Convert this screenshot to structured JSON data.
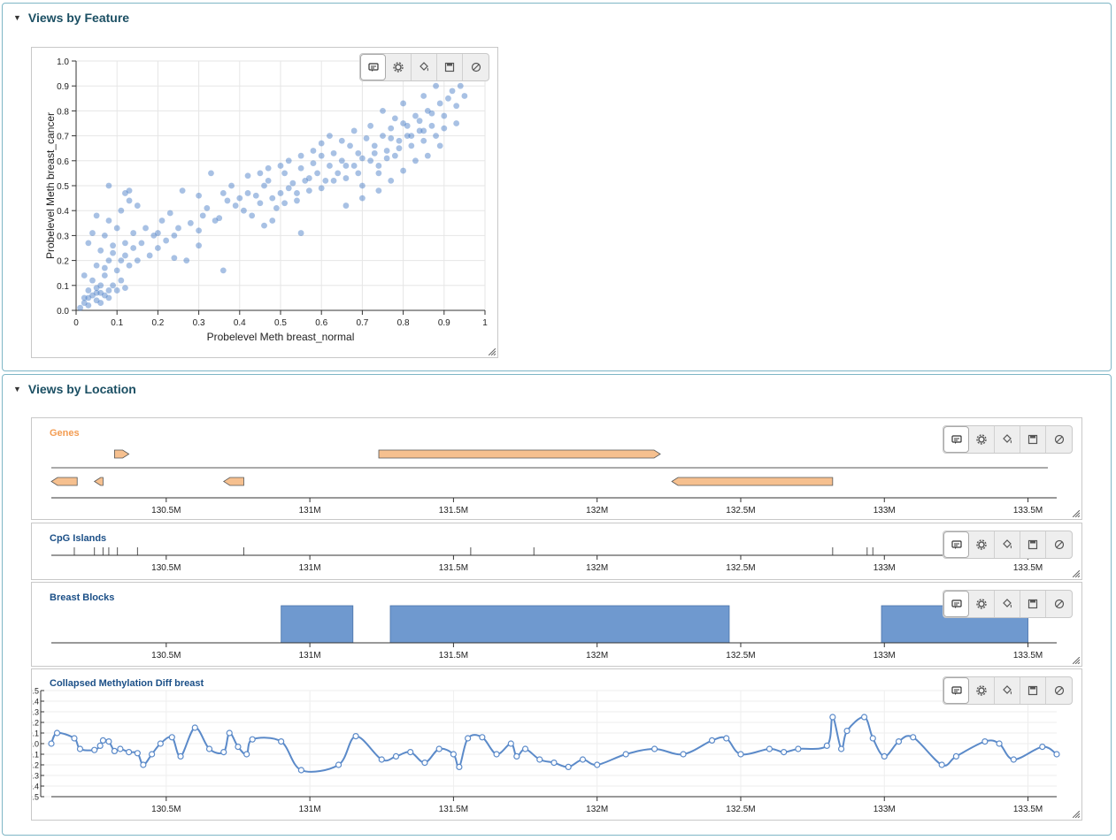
{
  "panels": {
    "feature": {
      "title": "Views by Feature"
    },
    "location": {
      "title": "Views by Location"
    }
  },
  "toolbar": {
    "icons": [
      "comment-icon",
      "gear-icon",
      "paint-bucket-icon",
      "save-icon",
      "disable-icon"
    ]
  },
  "colors": {
    "accent": "#1b4f63",
    "points": "#3d76c4",
    "genes": "#f6c08f",
    "genes_label": "#f39c52",
    "blocks": "#6f99cf",
    "line": "#5b8ac9"
  },
  "scatter": {
    "chart_data": {
      "type": "scatter",
      "xlabel": "Probelevel Meth breast_normal",
      "ylabel": "Probelevel Meth breast_cancer",
      "xlim": [
        0,
        1
      ],
      "ylim": [
        0,
        1
      ],
      "x_ticks": [
        "0",
        "0.1",
        "0.2",
        "0.3",
        "0.4",
        "0.5",
        "0.6",
        "0.7",
        "0.8",
        "0.9",
        "1"
      ],
      "y_ticks": [
        "0.0",
        "0.1",
        "0.2",
        "0.3",
        "0.4",
        "0.5",
        "0.6",
        "0.7",
        "0.8",
        "0.9",
        "1.0"
      ],
      "grid": true,
      "points": [
        [
          0.01,
          0.01
        ],
        [
          0.02,
          0.03
        ],
        [
          0.03,
          0.02
        ],
        [
          0.02,
          0.05
        ],
        [
          0.04,
          0.06
        ],
        [
          0.05,
          0.04
        ],
        [
          0.06,
          0.07
        ],
        [
          0.07,
          0.06
        ],
        [
          0.05,
          0.09
        ],
        [
          0.03,
          0.08
        ],
        [
          0.08,
          0.05
        ],
        [
          0.06,
          0.03
        ],
        [
          0.09,
          0.1
        ],
        [
          0.1,
          0.08
        ],
        [
          0.04,
          0.12
        ],
        [
          0.07,
          0.14
        ],
        [
          0.11,
          0.12
        ],
        [
          0.12,
          0.09
        ],
        [
          0.02,
          0.14
        ],
        [
          0.05,
          0.18
        ],
        [
          0.08,
          0.2
        ],
        [
          0.1,
          0.16
        ],
        [
          0.13,
          0.18
        ],
        [
          0.15,
          0.2
        ],
        [
          0.06,
          0.24
        ],
        [
          0.09,
          0.26
        ],
        [
          0.12,
          0.22
        ],
        [
          0.14,
          0.25
        ],
        [
          0.03,
          0.27
        ],
        [
          0.07,
          0.3
        ],
        [
          0.1,
          0.33
        ],
        [
          0.08,
          0.36
        ],
        [
          0.05,
          0.38
        ],
        [
          0.11,
          0.4
        ],
        [
          0.13,
          0.44
        ],
        [
          0.15,
          0.42
        ],
        [
          0.08,
          0.5
        ],
        [
          0.12,
          0.47
        ],
        [
          0.13,
          0.48
        ],
        [
          0.04,
          0.31
        ],
        [
          0.18,
          0.22
        ],
        [
          0.2,
          0.25
        ],
        [
          0.22,
          0.28
        ],
        [
          0.17,
          0.33
        ],
        [
          0.19,
          0.3
        ],
        [
          0.24,
          0.21
        ],
        [
          0.21,
          0.36
        ],
        [
          0.25,
          0.33
        ],
        [
          0.26,
          0.48
        ],
        [
          0.23,
          0.39
        ],
        [
          0.3,
          0.32
        ],
        [
          0.28,
          0.35
        ],
        [
          0.31,
          0.38
        ],
        [
          0.32,
          0.41
        ],
        [
          0.34,
          0.36
        ],
        [
          0.3,
          0.46
        ],
        [
          0.33,
          0.55
        ],
        [
          0.35,
          0.37
        ],
        [
          0.37,
          0.44
        ],
        [
          0.36,
          0.16
        ],
        [
          0.39,
          0.42
        ],
        [
          0.41,
          0.4
        ],
        [
          0.43,
          0.38
        ],
        [
          0.44,
          0.46
        ],
        [
          0.45,
          0.43
        ],
        [
          0.46,
          0.5
        ],
        [
          0.47,
          0.52
        ],
        [
          0.42,
          0.54
        ],
        [
          0.48,
          0.36
        ],
        [
          0.49,
          0.41
        ],
        [
          0.5,
          0.47
        ],
        [
          0.52,
          0.49
        ],
        [
          0.51,
          0.55
        ],
        [
          0.53,
          0.51
        ],
        [
          0.54,
          0.44
        ],
        [
          0.55,
          0.57
        ],
        [
          0.56,
          0.52
        ],
        [
          0.57,
          0.48
        ],
        [
          0.58,
          0.59
        ],
        [
          0.59,
          0.55
        ],
        [
          0.6,
          0.62
        ],
        [
          0.61,
          0.52
        ],
        [
          0.62,
          0.58
        ],
        [
          0.63,
          0.63
        ],
        [
          0.64,
          0.55
        ],
        [
          0.65,
          0.6
        ],
        [
          0.66,
          0.53
        ],
        [
          0.67,
          0.66
        ],
        [
          0.68,
          0.58
        ],
        [
          0.69,
          0.63
        ],
        [
          0.7,
          0.61
        ],
        [
          0.7,
          0.5
        ],
        [
          0.71,
          0.69
        ],
        [
          0.72,
          0.6
        ],
        [
          0.73,
          0.66
        ],
        [
          0.74,
          0.55
        ],
        [
          0.75,
          0.7
        ],
        [
          0.76,
          0.64
        ],
        [
          0.77,
          0.73
        ],
        [
          0.78,
          0.62
        ],
        [
          0.79,
          0.68
        ],
        [
          0.8,
          0.75
        ],
        [
          0.81,
          0.7
        ],
        [
          0.82,
          0.66
        ],
        [
          0.83,
          0.78
        ],
        [
          0.84,
          0.72
        ],
        [
          0.85,
          0.68
        ],
        [
          0.86,
          0.8
        ],
        [
          0.87,
          0.74
        ],
        [
          0.88,
          0.7
        ],
        [
          0.89,
          0.83
        ],
        [
          0.9,
          0.78
        ],
        [
          0.91,
          0.85
        ],
        [
          0.92,
          0.88
        ],
        [
          0.93,
          0.82
        ],
        [
          0.94,
          0.9
        ],
        [
          0.95,
          0.86
        ],
        [
          0.92,
          0.93
        ],
        [
          0.88,
          0.9
        ],
        [
          0.85,
          0.86
        ],
        [
          0.8,
          0.83
        ],
        [
          0.78,
          0.77
        ],
        [
          0.75,
          0.8
        ],
        [
          0.72,
          0.74
        ],
        [
          0.68,
          0.72
        ],
        [
          0.65,
          0.68
        ],
        [
          0.62,
          0.7
        ],
        [
          0.6,
          0.67
        ],
        [
          0.58,
          0.64
        ],
        [
          0.55,
          0.62
        ],
        [
          0.52,
          0.6
        ],
        [
          0.5,
          0.58
        ],
        [
          0.47,
          0.57
        ],
        [
          0.45,
          0.55
        ],
        [
          0.42,
          0.47
        ],
        [
          0.4,
          0.45
        ],
        [
          0.38,
          0.5
        ],
        [
          0.36,
          0.47
        ],
        [
          0.46,
          0.34
        ],
        [
          0.55,
          0.31
        ],
        [
          0.66,
          0.42
        ],
        [
          0.7,
          0.45
        ],
        [
          0.74,
          0.48
        ],
        [
          0.77,
          0.52
        ],
        [
          0.8,
          0.56
        ],
        [
          0.83,
          0.6
        ],
        [
          0.86,
          0.62
        ],
        [
          0.89,
          0.66
        ],
        [
          0.74,
          0.58
        ],
        [
          0.76,
          0.61
        ],
        [
          0.79,
          0.65
        ],
        [
          0.82,
          0.7
        ],
        [
          0.84,
          0.76
        ],
        [
          0.87,
          0.79
        ],
        [
          0.9,
          0.73
        ],
        [
          0.93,
          0.75
        ],
        [
          0.85,
          0.72
        ],
        [
          0.81,
          0.74
        ],
        [
          0.77,
          0.69
        ],
        [
          0.73,
          0.63
        ],
        [
          0.69,
          0.55
        ],
        [
          0.66,
          0.58
        ],
        [
          0.63,
          0.52
        ],
        [
          0.6,
          0.49
        ],
        [
          0.57,
          0.53
        ],
        [
          0.54,
          0.47
        ],
        [
          0.51,
          0.43
        ],
        [
          0.48,
          0.45
        ],
        [
          0.3,
          0.26
        ],
        [
          0.27,
          0.2
        ],
        [
          0.24,
          0.3
        ],
        [
          0.2,
          0.31
        ],
        [
          0.16,
          0.27
        ],
        [
          0.14,
          0.31
        ],
        [
          0.12,
          0.27
        ],
        [
          0.11,
          0.2
        ],
        [
          0.09,
          0.23
        ],
        [
          0.07,
          0.17
        ],
        [
          0.06,
          0.1
        ],
        [
          0.05,
          0.07
        ],
        [
          0.08,
          0.08
        ],
        [
          0.03,
          0.05
        ]
      ]
    }
  },
  "location": {
    "axis_ticks": [
      "130.5M",
      "131M",
      "131.5M",
      "132M",
      "132.5M",
      "133M",
      "133.5M"
    ],
    "axis_min": 130.1,
    "axis_max": 133.6,
    "genes": {
      "title": "Genes",
      "forward": [
        [
          130.32,
          130.37
        ],
        [
          131.24,
          132.22
        ]
      ],
      "reverse": [
        [
          130.1,
          130.19
        ],
        [
          130.25,
          130.28
        ],
        [
          130.7,
          130.77
        ],
        [
          132.26,
          132.82
        ]
      ]
    },
    "cpg": {
      "title": "CpG Islands",
      "marks": [
        130.18,
        130.25,
        130.28,
        130.3,
        130.33,
        130.4,
        130.77,
        131.56,
        131.78,
        132.82,
        132.94,
        132.96,
        133.22
      ]
    },
    "blocks": {
      "title": "Breast Blocks",
      "ranges": [
        [
          130.9,
          131.15
        ],
        [
          131.28,
          132.46
        ],
        [
          132.99,
          133.5
        ]
      ]
    },
    "methylation": {
      "title": "Collapsed Methylation Diff breast",
      "y_ticks": [
        "0.5",
        "0.4",
        "0.3",
        "0.2",
        "0.1",
        "0.0",
        "-0.1",
        "-0.2",
        "-0.3",
        "-0.4",
        "-0.5"
      ],
      "ylim": [
        -0.5,
        0.5
      ],
      "points": [
        [
          130.1,
          0.0
        ],
        [
          130.12,
          0.1
        ],
        [
          130.18,
          0.05
        ],
        [
          130.2,
          -0.05
        ],
        [
          130.25,
          -0.06
        ],
        [
          130.27,
          -0.02
        ],
        [
          130.28,
          0.03
        ],
        [
          130.3,
          0.02
        ],
        [
          130.32,
          -0.07
        ],
        [
          130.34,
          -0.05
        ],
        [
          130.37,
          -0.08
        ],
        [
          130.4,
          -0.09
        ],
        [
          130.42,
          -0.2
        ],
        [
          130.45,
          -0.1
        ],
        [
          130.48,
          0.0
        ],
        [
          130.52,
          0.06
        ],
        [
          130.55,
          -0.12
        ],
        [
          130.6,
          0.15
        ],
        [
          130.65,
          -0.05
        ],
        [
          130.7,
          -0.08
        ],
        [
          130.72,
          0.1
        ],
        [
          130.75,
          -0.03
        ],
        [
          130.78,
          -0.1
        ],
        [
          130.8,
          0.04
        ],
        [
          130.9,
          0.02
        ],
        [
          130.97,
          -0.25
        ],
        [
          131.1,
          -0.2
        ],
        [
          131.16,
          0.07
        ],
        [
          131.25,
          -0.15
        ],
        [
          131.3,
          -0.12
        ],
        [
          131.35,
          -0.08
        ],
        [
          131.4,
          -0.18
        ],
        [
          131.45,
          -0.05
        ],
        [
          131.5,
          -0.1
        ],
        [
          131.52,
          -0.22
        ],
        [
          131.55,
          0.05
        ],
        [
          131.6,
          0.06
        ],
        [
          131.65,
          -0.1
        ],
        [
          131.7,
          0.0
        ],
        [
          131.72,
          -0.12
        ],
        [
          131.75,
          -0.05
        ],
        [
          131.8,
          -0.15
        ],
        [
          131.85,
          -0.18
        ],
        [
          131.9,
          -0.22
        ],
        [
          131.95,
          -0.15
        ],
        [
          132.0,
          -0.2
        ],
        [
          132.1,
          -0.1
        ],
        [
          132.2,
          -0.05
        ],
        [
          132.3,
          -0.1
        ],
        [
          132.4,
          0.03
        ],
        [
          132.45,
          0.05
        ],
        [
          132.5,
          -0.1
        ],
        [
          132.6,
          -0.05
        ],
        [
          132.65,
          -0.08
        ],
        [
          132.7,
          -0.05
        ],
        [
          132.8,
          -0.02
        ],
        [
          132.82,
          0.25
        ],
        [
          132.85,
          -0.05
        ],
        [
          132.87,
          0.12
        ],
        [
          132.93,
          0.25
        ],
        [
          132.96,
          0.05
        ],
        [
          133.0,
          -0.12
        ],
        [
          133.05,
          0.02
        ],
        [
          133.1,
          0.06
        ],
        [
          133.2,
          -0.2
        ],
        [
          133.25,
          -0.12
        ],
        [
          133.35,
          0.02
        ],
        [
          133.4,
          0.0
        ],
        [
          133.45,
          -0.15
        ],
        [
          133.55,
          -0.03
        ],
        [
          133.6,
          -0.1
        ]
      ]
    }
  }
}
